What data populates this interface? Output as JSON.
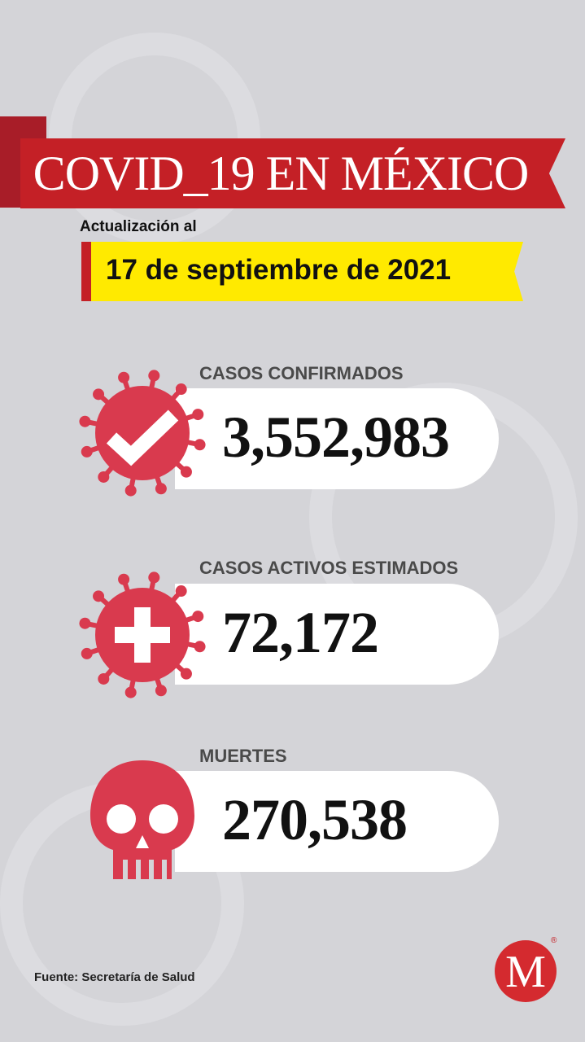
{
  "header": {
    "title": "COVID_19 EN MÉXICO",
    "update_label": "Actualización al",
    "date": "17 de septiembre de 2021"
  },
  "stats": [
    {
      "label": "CASOS CONFIRMADOS",
      "value": "3,552,983",
      "icon": "virus-check-icon"
    },
    {
      "label": "CASOS ACTIVOS ESTIMADOS",
      "value": "72,172",
      "icon": "virus-plus-icon"
    },
    {
      "label": "MUERTES",
      "value": "270,538",
      "icon": "skull-icon"
    }
  ],
  "footer": {
    "source": "Fuente: Secretaría de Salud",
    "logo_letter": "M",
    "logo_mark": "®"
  },
  "colors": {
    "ribbon": "#c42026",
    "highlight": "#ffea00",
    "icon": "#d93a4e",
    "background": "#d4d4d8"
  }
}
